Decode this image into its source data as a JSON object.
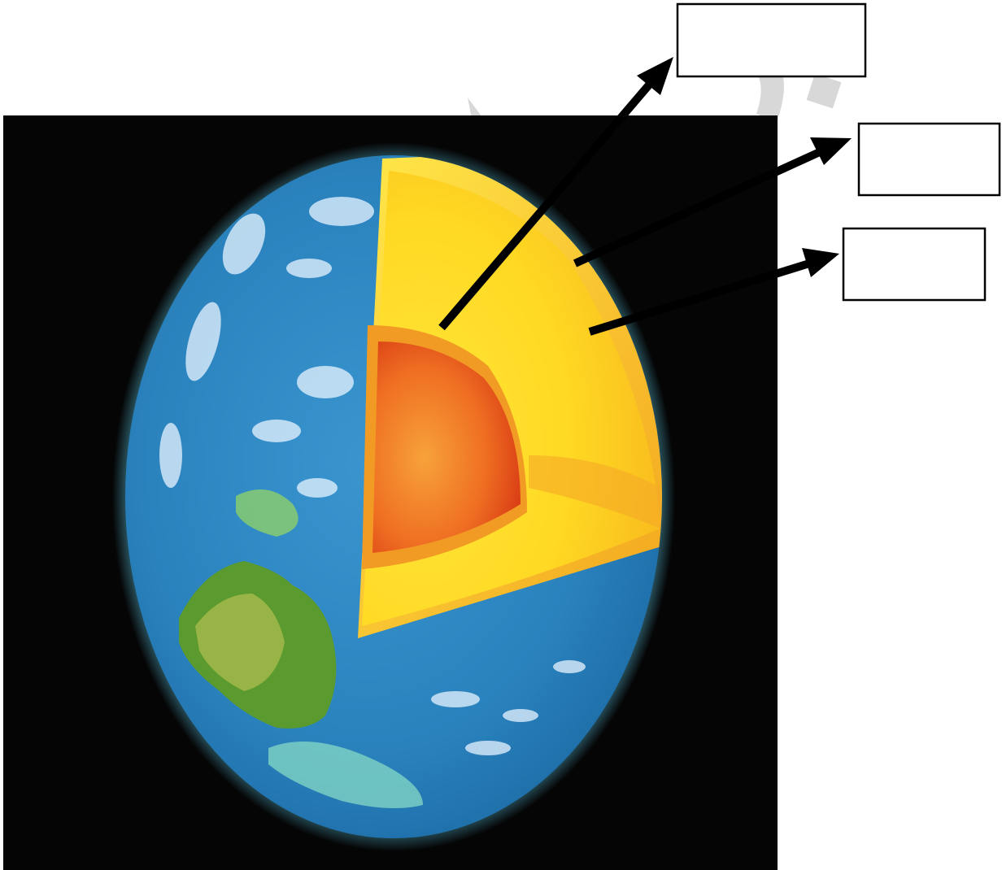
{
  "diagram": {
    "layers": [
      {
        "id": "crust",
        "fill_start": "#ffd21a",
        "fill_end": "#f1a51c"
      },
      {
        "id": "mantle",
        "fill_start": "#ffe63a",
        "fill_end": "#f39a1c"
      },
      {
        "id": "core",
        "fill_start": "#f58c24",
        "fill_end": "#d83a14"
      }
    ],
    "labels": [
      {
        "id": "label-top",
        "text": ""
      },
      {
        "id": "label-middle",
        "text": ""
      },
      {
        "id": "label-bottom",
        "text": ""
      }
    ],
    "colors": {
      "space": "#050505",
      "ocean": "#2a82bd",
      "ocean_rim": "#63d6f5",
      "land": "#4a8e2a",
      "land_light": "#9ab84a",
      "cloud": "#e8f4ff",
      "watermark": "#cfcfcf"
    }
  }
}
